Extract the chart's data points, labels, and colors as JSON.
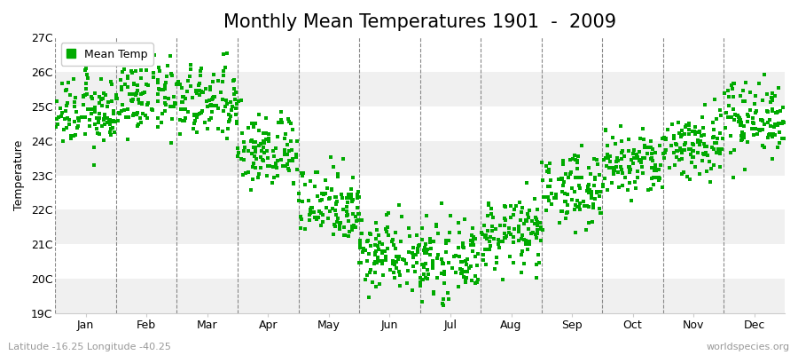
{
  "title": "Monthly Mean Temperatures 1901  -  2009",
  "ylabel": "Temperature",
  "xlabel": "",
  "background_color": "#ffffff",
  "plot_bg_color": "#ffffff",
  "marker_color": "#00aa00",
  "marker_size": 5,
  "legend_label": "Mean Temp",
  "footer_left": "Latitude -16.25 Longitude -40.25",
  "footer_right": "worldspecies.org",
  "ylim_min": 19,
  "ylim_max": 27,
  "ytick_labels": [
    "19C",
    "20C",
    "21C",
    "22C",
    "23C",
    "24C",
    "25C",
    "26C",
    "27C"
  ],
  "months": [
    "Jan",
    "Feb",
    "Mar",
    "Apr",
    "May",
    "Jun",
    "Jul",
    "Aug",
    "Sep",
    "Oct",
    "Nov",
    "Dec"
  ],
  "mean_temps": [
    24.8,
    25.3,
    25.1,
    23.7,
    22.2,
    20.8,
    20.5,
    21.3,
    22.6,
    23.3,
    23.9,
    24.7
  ],
  "std_temps": [
    0.5,
    0.55,
    0.55,
    0.55,
    0.55,
    0.55,
    0.5,
    0.5,
    0.52,
    0.5,
    0.52,
    0.55
  ],
  "n_years": 109,
  "title_fontsize": 15,
  "axis_fontsize": 9,
  "tick_fontsize": 9,
  "footer_fontsize": 8,
  "band_colors": [
    "#f0f0f0",
    "#ffffff"
  ]
}
